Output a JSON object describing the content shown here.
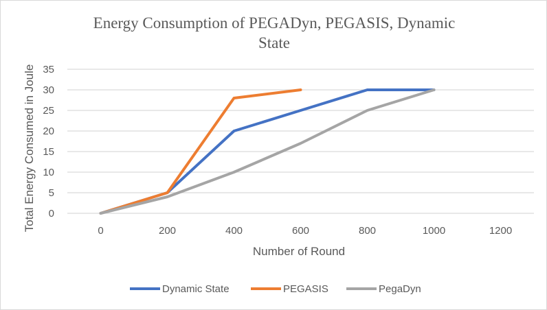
{
  "chart_data": {
    "type": "line",
    "title_lines": [
      "Energy Consumption of PEGADyn, PEGASIS, Dynamic",
      "State"
    ],
    "xlabel": "Number of Round",
    "ylabel": "Total Energy Consumed in Joule",
    "categories": [
      "0",
      "200",
      "400",
      "600",
      "800",
      "1000",
      "1200"
    ],
    "yticks": [
      "0",
      "5",
      "10",
      "15",
      "20",
      "25",
      "30",
      "35"
    ],
    "ylim": [
      0,
      35
    ],
    "grid": true,
    "legend_position": "bottom",
    "series": [
      {
        "name": "Dynamic State",
        "color": "#4472c4",
        "values": [
          0,
          5,
          20,
          25,
          30,
          30,
          null
        ]
      },
      {
        "name": "PEGASIS",
        "color": "#ed7d31",
        "values": [
          0,
          5,
          28,
          30,
          null,
          null,
          null
        ]
      },
      {
        "name": "PegaDyn",
        "color": "#a5a5a5",
        "values": [
          0,
          4,
          10,
          17,
          25,
          30,
          null
        ]
      }
    ]
  }
}
